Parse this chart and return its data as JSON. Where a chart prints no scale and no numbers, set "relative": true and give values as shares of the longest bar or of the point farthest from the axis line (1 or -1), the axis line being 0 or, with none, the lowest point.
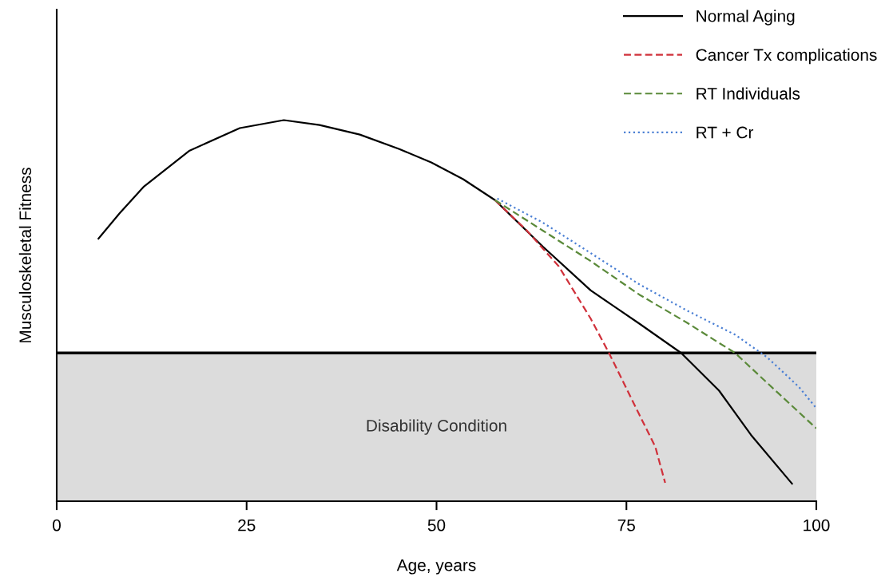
{
  "chart_data": {
    "type": "line",
    "relative": true,
    "xlabel": "Age, years",
    "ylabel": "Musculoskeletal Fitness",
    "xlim": [
      0,
      100
    ],
    "xticks": [
      0,
      25,
      50,
      75,
      100
    ],
    "grid": false,
    "legend": "top right",
    "series": [
      {
        "name": "Normal Aging",
        "color": "#000000",
        "line_style": "solid",
        "x": [
          5.5,
          8.3,
          11.5,
          17.5,
          24.1,
          29.9,
          34.6,
          39.9,
          45.1,
          49.3,
          53.5,
          57.7,
          64.0,
          70.3,
          76.7,
          82.2,
          87.2,
          91.4,
          96.8
        ],
        "values": [
          0.689,
          0.756,
          0.826,
          0.92,
          0.979,
          1.0,
          0.987,
          0.962,
          0.924,
          0.889,
          0.845,
          0.79,
          0.668,
          0.553,
          0.466,
          0.389,
          0.29,
          0.174,
          0.046
        ]
      },
      {
        "name": "Cancer Tx complications",
        "color": "#d0313b",
        "line_style": "dashed",
        "x": [
          57.7,
          61.9,
          66.1,
          70.3,
          72.7,
          76.7,
          78.8,
          80.1
        ],
        "values": [
          0.79,
          0.71,
          0.616,
          0.479,
          0.389,
          0.227,
          0.143,
          0.048
        ]
      },
      {
        "name": "RT Individuals",
        "color": "#5b8a3a",
        "line_style": "dashed",
        "x": [
          57.7,
          64.0,
          70.3,
          76.7,
          83.0,
          89.3,
          93.5,
          100
        ],
        "values": [
          0.79,
          0.71,
          0.63,
          0.542,
          0.468,
          0.389,
          0.311,
          0.191
        ]
      },
      {
        "name": "RT + Cr",
        "color": "#4a7fd4",
        "line_style": "dotted",
        "x": [
          58.0,
          64.0,
          70.3,
          76.7,
          83.0,
          89.3,
          93.5,
          97.7,
          100
        ],
        "values": [
          0.794,
          0.731,
          0.651,
          0.569,
          0.5,
          0.437,
          0.378,
          0.3,
          0.244
        ]
      }
    ],
    "bands": [
      {
        "axis": "y",
        "from": 0,
        "to": 0.389,
        "label": "Disability Condition",
        "color": "#dcdcdc"
      }
    ],
    "ref_lines": [
      {
        "axis": "y",
        "value": 0.389,
        "color": "#000000",
        "line_style": "solid"
      }
    ]
  }
}
